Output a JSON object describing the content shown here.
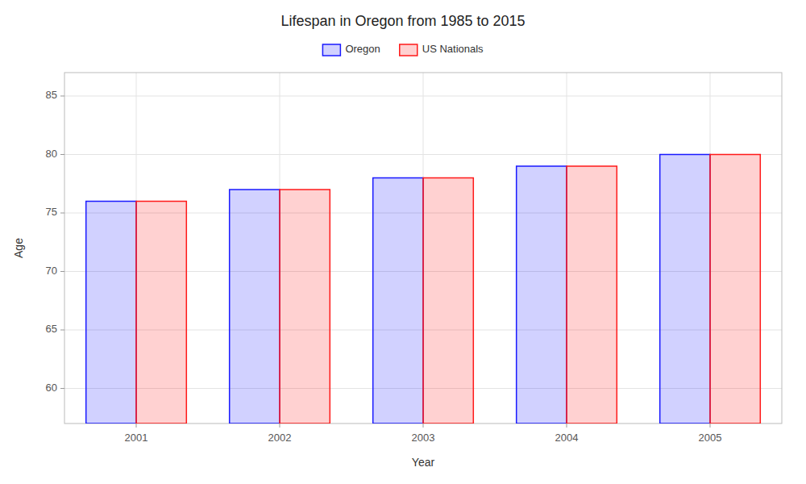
{
  "chart_data": {
    "type": "bar",
    "title": "Lifespan in Oregon from 1985 to 2015",
    "xlabel": "Year",
    "ylabel": "Age",
    "categories": [
      "2001",
      "2002",
      "2003",
      "2004",
      "2005"
    ],
    "series": [
      {
        "name": "Oregon",
        "color": "#1a1aff",
        "values": [
          76,
          77,
          78,
          79,
          80
        ]
      },
      {
        "name": "US Nationals",
        "color": "#ff1a1a",
        "values": [
          76,
          77,
          78,
          79,
          80
        ]
      }
    ],
    "ylim": [
      57,
      87
    ],
    "yticks": [
      60,
      65,
      70,
      75,
      80,
      85
    ],
    "grid": true,
    "legend": "top"
  }
}
